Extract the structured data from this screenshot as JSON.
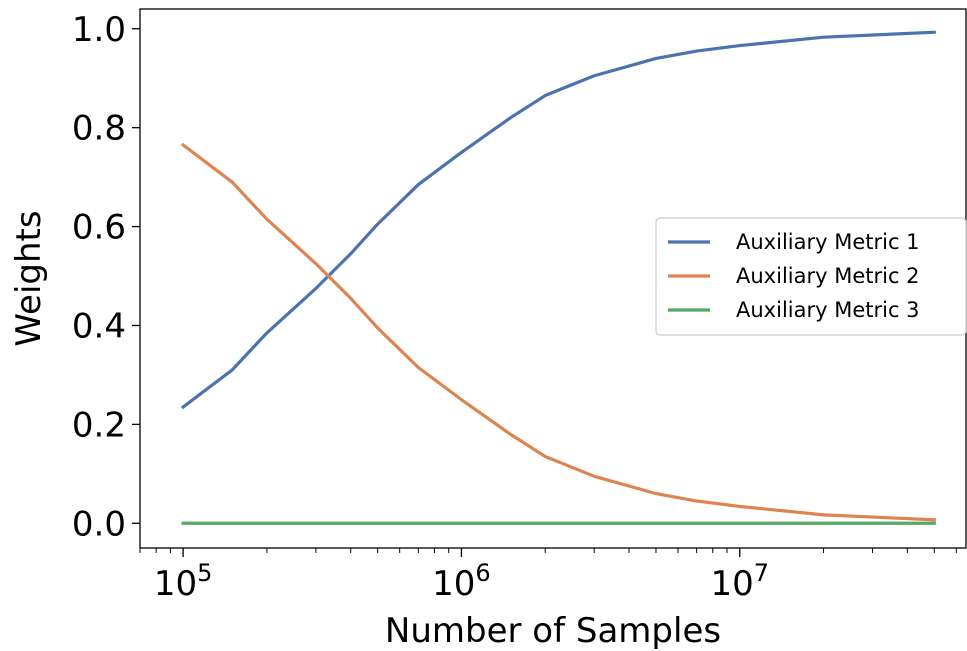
{
  "chart_data": {
    "type": "line",
    "xlabel": "Number of Samples",
    "ylabel": "Weights",
    "xscale": "log",
    "xlim": [
      70000,
      65000000
    ],
    "ylim": [
      -0.05,
      1.04
    ],
    "xtick_base": "10",
    "xticks": [
      {
        "value": 100000,
        "exp": "5"
      },
      {
        "value": 1000000,
        "exp": "6"
      },
      {
        "value": 10000000,
        "exp": "7"
      }
    ],
    "yticks": [
      {
        "value": 0.0,
        "label": "0.0"
      },
      {
        "value": 0.2,
        "label": "0.2"
      },
      {
        "value": 0.4,
        "label": "0.4"
      },
      {
        "value": 0.6,
        "label": "0.6"
      },
      {
        "value": 0.8,
        "label": "0.8"
      },
      {
        "value": 1.0,
        "label": "1.0"
      }
    ],
    "grid": false,
    "legend_position": "center-right",
    "x": [
      100000,
      150000,
      200000,
      300000,
      400000,
      500000,
      700000,
      1000000,
      1500000,
      2000000,
      3000000,
      5000000,
      7000000,
      10000000,
      20000000,
      50000000
    ],
    "series": [
      {
        "name": "Auxiliary Metric 1",
        "color": "#4c72b0",
        "values": [
          0.235,
          0.31,
          0.385,
          0.475,
          0.545,
          0.605,
          0.685,
          0.75,
          0.82,
          0.865,
          0.905,
          0.94,
          0.955,
          0.966,
          0.983,
          0.993
        ]
      },
      {
        "name": "Auxiliary Metric 2",
        "color": "#dd8452",
        "values": [
          0.765,
          0.69,
          0.615,
          0.525,
          0.455,
          0.395,
          0.315,
          0.25,
          0.18,
          0.135,
          0.095,
          0.06,
          0.045,
          0.034,
          0.017,
          0.007
        ]
      },
      {
        "name": "Auxiliary Metric 3",
        "color": "#55a868",
        "values": [
          0,
          0,
          0,
          0,
          0,
          0,
          0,
          0,
          0,
          0,
          0,
          0,
          0,
          0,
          0,
          0
        ]
      }
    ]
  }
}
